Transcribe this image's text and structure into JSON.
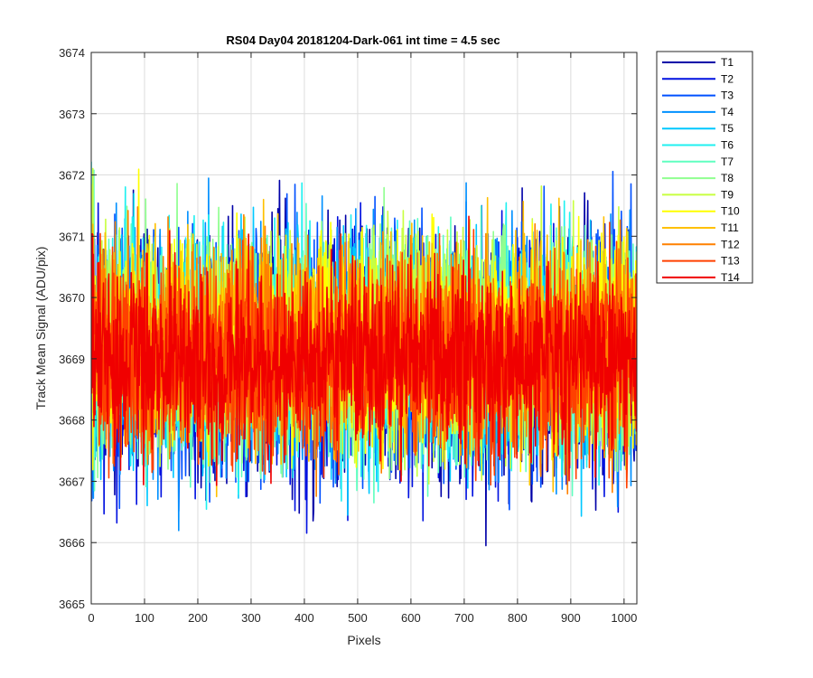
{
  "chart_data": {
    "type": "line",
    "title": "RS04 Day04 20181204-Dark-061 int time = 4.5 sec",
    "xlabel": "Pixels",
    "ylabel": "Track Mean Signal (ADU/pix)",
    "xlim": [
      0,
      1024
    ],
    "ylim": [
      3665,
      3674
    ],
    "xticks": [
      0,
      100,
      200,
      300,
      400,
      500,
      600,
      700,
      800,
      900,
      1000
    ],
    "yticks": [
      3665,
      3666,
      3667,
      3668,
      3669,
      3670,
      3671,
      3672,
      3673,
      3674
    ],
    "grid": true,
    "legend_placement": "outside-top-right",
    "x_points": 1024,
    "series": [
      {
        "name": "T1",
        "color": "#0000a8",
        "mean": 3669.0,
        "amplitude": 2.1
      },
      {
        "name": "T2",
        "color": "#0010e0",
        "mean": 3669.0,
        "amplitude": 2.0
      },
      {
        "name": "T3",
        "color": "#0050ff",
        "mean": 3669.1,
        "amplitude": 1.9
      },
      {
        "name": "T4",
        "color": "#0090ff",
        "mean": 3669.1,
        "amplitude": 1.9
      },
      {
        "name": "T5",
        "color": "#00c8ff",
        "mean": 3669.1,
        "amplitude": 1.8
      },
      {
        "name": "T6",
        "color": "#20f0f0",
        "mean": 3669.2,
        "amplitude": 1.8
      },
      {
        "name": "T7",
        "color": "#60ffc0",
        "mean": 3669.2,
        "amplitude": 1.8
      },
      {
        "name": "T8",
        "color": "#90ff90",
        "mean": 3669.2,
        "amplitude": 1.8
      },
      {
        "name": "T9",
        "color": "#c8ff40",
        "mean": 3669.3,
        "amplitude": 1.8
      },
      {
        "name": "T10",
        "color": "#ffff00",
        "mean": 3669.3,
        "amplitude": 1.7
      },
      {
        "name": "T11",
        "color": "#ffc000",
        "mean": 3669.2,
        "amplitude": 1.7
      },
      {
        "name": "T12",
        "color": "#ff8000",
        "mean": 3669.1,
        "amplitude": 1.7
      },
      {
        "name": "T13",
        "color": "#ff4000",
        "mean": 3669.0,
        "amplitude": 1.7
      },
      {
        "name": "T14",
        "color": "#f00000",
        "mean": 3669.0,
        "amplitude": 1.5
      }
    ]
  }
}
